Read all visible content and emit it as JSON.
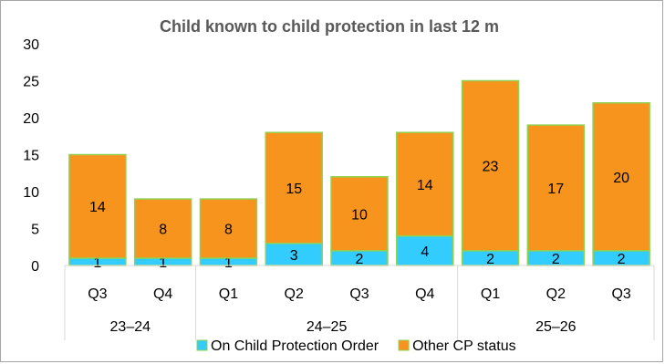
{
  "chart_data": {
    "type": "bar",
    "stacked": true,
    "title": "Child known to child protection in last 12 m",
    "xlabel": "",
    "ylabel": "",
    "ylim": [
      0,
      30
    ],
    "yticks": [
      "0",
      "5",
      "10",
      "15",
      "20",
      "25",
      "30"
    ],
    "grid": false,
    "legend_position": "bottom",
    "categories": [
      "Q3",
      "Q4",
      "Q1",
      "Q2",
      "Q3",
      "Q4",
      "Q1",
      "Q2",
      "Q3"
    ],
    "groups": [
      {
        "label": "23–24",
        "count": 2
      },
      {
        "label": "24–25",
        "count": 4
      },
      {
        "label": "25–26",
        "count": 3
      }
    ],
    "series": [
      {
        "name": "On Child Protection Order",
        "color": "#33ccff",
        "values": [
          1,
          1,
          1,
          3,
          2,
          4,
          2,
          2,
          2
        ]
      },
      {
        "name": "Other CP status",
        "color": "#f7941d",
        "values": [
          14,
          8,
          8,
          15,
          10,
          14,
          23,
          17,
          20
        ]
      }
    ],
    "bar_edge_color": "#92d050"
  }
}
